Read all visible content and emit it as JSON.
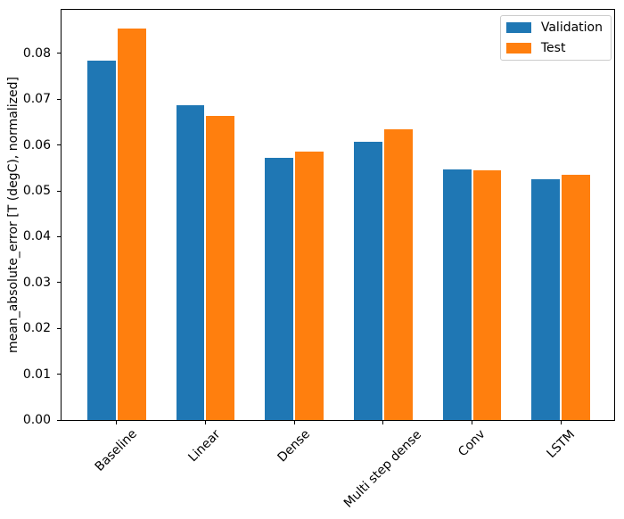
{
  "chart_data": {
    "type": "bar",
    "title": "",
    "xlabel": "",
    "ylabel": "mean_absolute_error [T (degC), normalized]",
    "categories": [
      "Baseline",
      "Linear",
      "Dense",
      "Multi step dense",
      "Conv",
      "LSTM"
    ],
    "series": [
      {
        "name": "Validation",
        "color": "#1f77b4",
        "values": [
          0.0785,
          0.0687,
          0.0573,
          0.0607,
          0.0546,
          0.0525
        ]
      },
      {
        "name": "Test",
        "color": "#ff7f0e",
        "values": [
          0.0855,
          0.0664,
          0.0585,
          0.0635,
          0.0544,
          0.0535
        ]
      }
    ],
    "ylim": [
      0,
      0.0895
    ],
    "y_ticks": [
      "0.00",
      "0.01",
      "0.02",
      "0.03",
      "0.04",
      "0.05",
      "0.06",
      "0.07",
      "0.08"
    ],
    "x_tick_rotation_deg": 45,
    "grid": false,
    "legend_position": "upper right",
    "axis_color": "#000000",
    "legend_border_color": "#cccccc"
  }
}
